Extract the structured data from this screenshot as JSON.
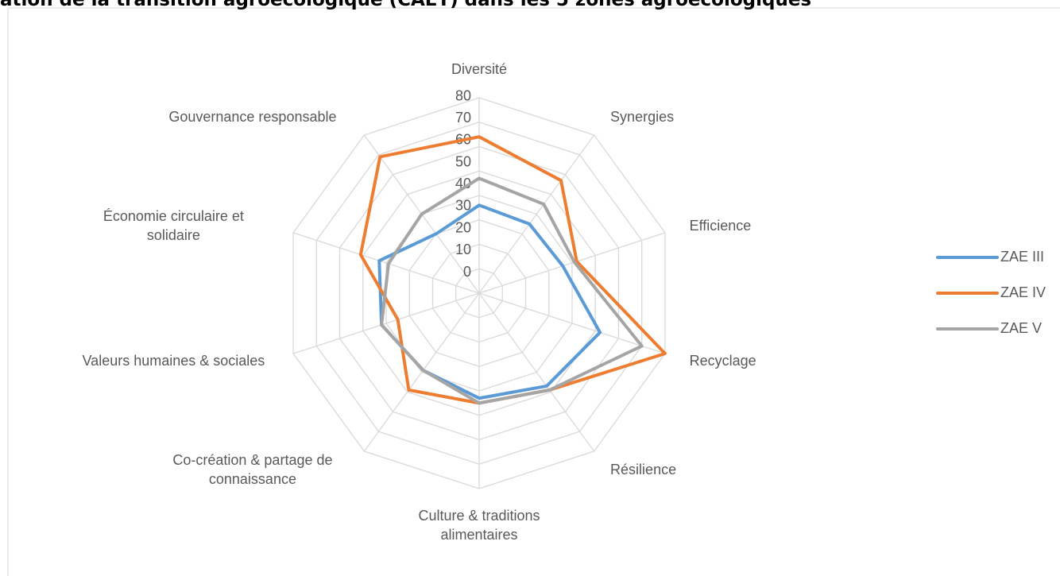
{
  "chart_data": {
    "type": "radar",
    "title": "ation de la transition agroécologique (CAET) dans les 5 zones agroécologiques",
    "categories": [
      "Diversité",
      "Synergies",
      "Efficience",
      "Recyclage",
      "Résilience",
      "Culture & traditions alimentaires",
      "Co-création & partage de connaissance",
      "Valeurs humaines & sociales",
      "Économie circulaire et solidaire",
      "Gouvernance responsable"
    ],
    "series": [
      {
        "name": "ZAE III",
        "color": "#5b9bd5",
        "values": [
          36,
          35,
          36,
          52,
          47,
          43,
          39,
          42,
          43,
          30
        ]
      },
      {
        "name": "ZAE IV",
        "color": "#ed7d31",
        "values": [
          64,
          57,
          42,
          80,
          49,
          45,
          49,
          35,
          51,
          69
        ]
      },
      {
        "name": "ZAE V",
        "color": "#a5a5a5",
        "values": [
          47,
          45,
          41,
          70,
          49,
          45,
          39,
          42,
          39,
          40
        ]
      }
    ],
    "ylim": [
      0,
      80
    ],
    "yticks": [
      0,
      10,
      20,
      30,
      40,
      50,
      60,
      70,
      80
    ],
    "grid": true,
    "legend": "right"
  }
}
